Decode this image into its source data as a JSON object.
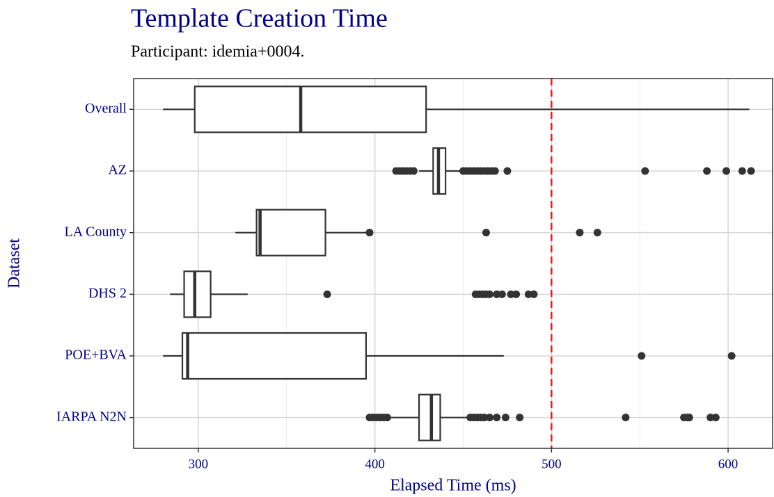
{
  "chart_data": {
    "type": "boxplot",
    "title": "Template Creation Time",
    "subtitle": "Participant: idemia+0004.",
    "x_label": "Elapsed Time (ms)",
    "y_label": "Dataset",
    "categories": [
      "Overall",
      "AZ",
      "LA County",
      "DHS 2",
      "POE+BVA",
      "IARPA N2N"
    ],
    "boxes": [
      {
        "whislo": 280,
        "q1": 298,
        "med": 358,
        "q3": 429,
        "whishi": 612,
        "outliers": []
      },
      {
        "whislo": 425,
        "q1": 433,
        "med": 436,
        "q3": 440,
        "whishi": 449,
        "outliers": [
          412,
          414,
          416,
          418,
          420,
          422,
          450,
          452,
          454,
          456,
          458,
          460,
          462,
          464,
          466,
          468,
          475,
          553,
          588,
          599,
          608,
          613
        ]
      },
      {
        "whislo": 321,
        "q1": 333,
        "med": 335,
        "q3": 372,
        "whishi": 395,
        "outliers": [
          397,
          463,
          516,
          526
        ]
      },
      {
        "whislo": 284,
        "q1": 292,
        "med": 298,
        "q3": 307,
        "whishi": 328,
        "outliers": [
          373,
          457,
          459,
          461,
          463,
          465,
          469,
          472,
          477,
          480,
          487,
          490
        ]
      },
      {
        "whislo": 280,
        "q1": 291,
        "med": 294,
        "q3": 395,
        "whishi": 473,
        "outliers": [
          551,
          602
        ]
      },
      {
        "whislo": 409,
        "q1": 425,
        "med": 432,
        "q3": 437,
        "whishi": 452,
        "outliers": [
          397,
          399,
          401,
          403,
          405,
          407,
          454,
          456,
          458,
          460,
          462,
          465,
          469,
          474,
          482,
          542,
          575,
          577,
          578,
          590,
          593
        ]
      }
    ],
    "xlim": [
      263.4,
      625.2
    ],
    "xticks": [
      300,
      400,
      500,
      600
    ],
    "x_minor_grid": [
      350,
      450,
      550
    ],
    "reference_line": 500,
    "reference_color": "#e41a1c",
    "box_color": "#333333",
    "label_color": "#00008b",
    "grid": true
  }
}
